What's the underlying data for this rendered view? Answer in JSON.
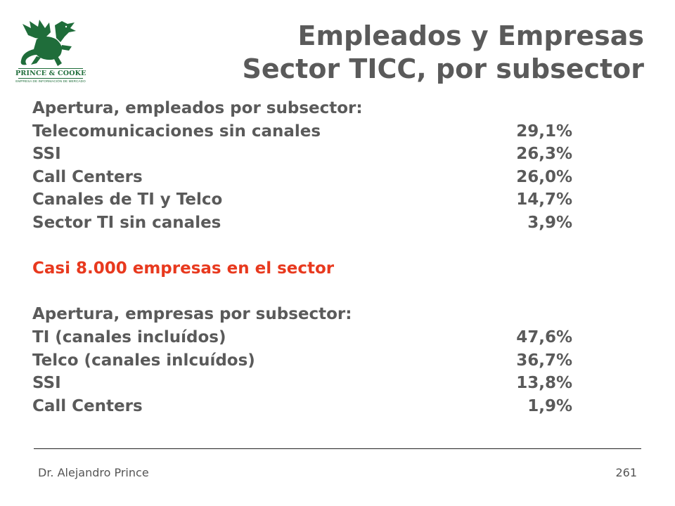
{
  "logo": {
    "icon": "dragon-icon",
    "name": "PRINCE & COOKE",
    "tagline": "EMPRESA DE INFORMACIÓN DE MERCADO",
    "color": "#1f6d3a"
  },
  "title": {
    "line1": "Empleados y Empresas",
    "line2": "Sector TICC, por subsector"
  },
  "employees": {
    "heading": "Apertura, empleados por subsector:",
    "rows": [
      {
        "label": "Telecomunicaciones sin canales",
        "value": "29,1%"
      },
      {
        "label": "SSI",
        "value": "26,3%"
      },
      {
        "label": "Call Centers",
        "value": "26,0%"
      },
      {
        "label": "Canales de TI y Telco",
        "value": "14,7%"
      },
      {
        "label": "Sector TI sin canales",
        "value": "3,9%"
      }
    ]
  },
  "highlight": "Casi 8.000 empresas en el sector",
  "companies": {
    "heading": "Apertura, empresas por subsector:",
    "rows": [
      {
        "label": "TI (canales incluídos)",
        "value": "47,6%"
      },
      {
        "label": "Telco (canales inlcuídos)",
        "value": "36,7%"
      },
      {
        "label": "SSI",
        "value": "13,8%"
      },
      {
        "label": "Call Centers",
        "value": "1,9%"
      }
    ]
  },
  "footer": {
    "author": "Dr. Alejandro Prince",
    "page": "261"
  },
  "colors": {
    "text": "#5a5a5a",
    "accent": "#e8391e"
  }
}
